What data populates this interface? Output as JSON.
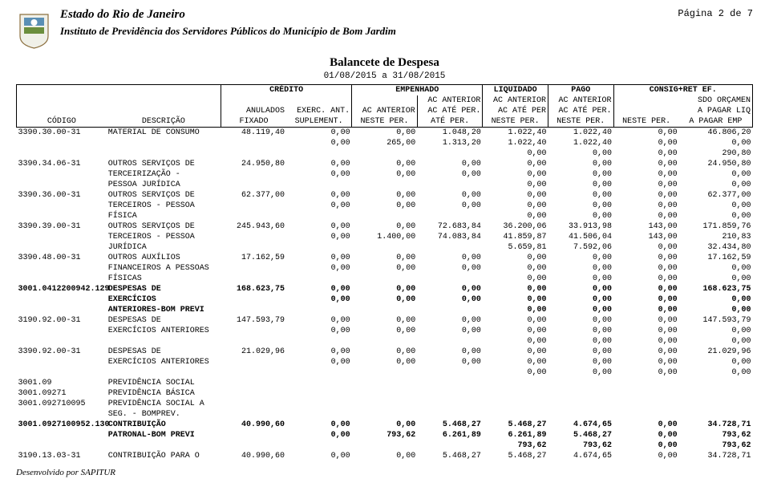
{
  "header": {
    "state": "Estado do Rio de Janeiro",
    "institution": "Instituto de Previdência dos Servidores Públicos do Município de Bom Jardim",
    "page": "Página 2 de 7"
  },
  "title": {
    "main": "Balancete de Despesa",
    "period": "01/08/2015 a 31/08/2015"
  },
  "groupHeaders": {
    "blank": "",
    "credito": "CRÉDITO",
    "empenhado": "EMPENHADO",
    "liquidado": "LIQUIDADO",
    "pago": "PAGO",
    "consig": "CONSIG+RET EF."
  },
  "colHeaders": {
    "r1": [
      "",
      "",
      "",
      "",
      "",
      "AC ANTERIOR",
      "AC ANTERIOR",
      "AC ANTERIOR",
      "SDO ORÇAMEN"
    ],
    "r2": [
      "",
      "",
      "ANULADOS",
      "EXERC. ANT.",
      "AC ANTERIOR",
      "AC ATÉ PER.",
      "AC ATÉ PER",
      "AC ATÉ PER.",
      "A PAGAR LIQ"
    ],
    "r3": [
      "CÓDIGO",
      "DESCRIÇÃO",
      "FIXADO",
      "SUPLEMENT.",
      "NESTE PER.",
      "ATÉ PER.",
      "NESTE PER.",
      "NESTE PER.",
      "NESTE PER.",
      "A PAGAR EMP"
    ]
  },
  "rows": [
    {
      "code": "3390.30.00-31",
      "desc": [
        "MATERIAL DE CONSUMO"
      ],
      "bold": false,
      "lines": [
        [
          "48.119,40",
          "0,00",
          "0,00",
          "1.048,20",
          "1.022,40",
          "1.022,40",
          "0,00",
          "46.806,20"
        ],
        [
          "",
          "0,00",
          "265,00",
          "1.313,20",
          "1.022,40",
          "1.022,40",
          "0,00",
          "0,00"
        ],
        [
          "",
          "",
          "",
          "",
          "0,00",
          "0,00",
          "0,00",
          "290,80"
        ]
      ]
    },
    {
      "code": "3390.34.06-31",
      "desc": [
        "OUTROS SERVIÇOS DE",
        "TERCEIRIZAÇÃO -",
        "PESSOA JURÍDICA"
      ],
      "bold": false,
      "lines": [
        [
          "24.950,80",
          "0,00",
          "0,00",
          "0,00",
          "0,00",
          "0,00",
          "0,00",
          "24.950,80"
        ],
        [
          "",
          "0,00",
          "0,00",
          "0,00",
          "0,00",
          "0,00",
          "0,00",
          "0,00"
        ],
        [
          "",
          "",
          "",
          "",
          "0,00",
          "0,00",
          "0,00",
          "0,00"
        ]
      ]
    },
    {
      "code": "3390.36.00-31",
      "desc": [
        "OUTROS SERVIÇOS DE",
        "TERCEIROS - PESSOA",
        "FÍSICA"
      ],
      "bold": false,
      "lines": [
        [
          "62.377,00",
          "0,00",
          "0,00",
          "0,00",
          "0,00",
          "0,00",
          "0,00",
          "62.377,00"
        ],
        [
          "",
          "0,00",
          "0,00",
          "0,00",
          "0,00",
          "0,00",
          "0,00",
          "0,00"
        ],
        [
          "",
          "",
          "",
          "",
          "0,00",
          "0,00",
          "0,00",
          "0,00"
        ]
      ]
    },
    {
      "code": "3390.39.00-31",
      "desc": [
        "OUTROS SERVIÇOS DE",
        "TERCEIROS - PESSOA",
        "JURÍDICA"
      ],
      "bold": false,
      "lines": [
        [
          "245.943,60",
          "0,00",
          "0,00",
          "72.683,84",
          "36.200,06",
          "33.913,98",
          "143,00",
          "171.859,76"
        ],
        [
          "",
          "0,00",
          "1.400,00",
          "74.083,84",
          "41.859,87",
          "41.506,04",
          "143,00",
          "210,83"
        ],
        [
          "",
          "",
          "",
          "",
          "5.659,81",
          "7.592,06",
          "0,00",
          "32.434,80"
        ]
      ]
    },
    {
      "code": "3390.48.00-31",
      "desc": [
        "OUTROS AUXÍLIOS",
        "FINANCEIROS A PESSOAS",
        "FÍSICAS"
      ],
      "bold": false,
      "lines": [
        [
          "17.162,59",
          "0,00",
          "0,00",
          "0,00",
          "0,00",
          "0,00",
          "0,00",
          "17.162,59"
        ],
        [
          "",
          "0,00",
          "0,00",
          "0,00",
          "0,00",
          "0,00",
          "0,00",
          "0,00"
        ],
        [
          "",
          "",
          "",
          "",
          "0,00",
          "0,00",
          "0,00",
          "0,00"
        ]
      ]
    },
    {
      "code": "3001.0412200942.129",
      "desc": [
        "DESPESAS DE",
        "EXERCÍCIOS",
        "ANTERIORES-BOM PREVI"
      ],
      "bold": true,
      "lines": [
        [
          "168.623,75",
          "0,00",
          "0,00",
          "0,00",
          "0,00",
          "0,00",
          "0,00",
          "168.623,75"
        ],
        [
          "",
          "0,00",
          "0,00",
          "0,00",
          "0,00",
          "0,00",
          "0,00",
          "0,00"
        ],
        [
          "",
          "",
          "",
          "",
          "0,00",
          "0,00",
          "0,00",
          "0,00"
        ]
      ]
    },
    {
      "code": "3190.92.00-31",
      "desc": [
        "DESPESAS DE",
        "EXERCÍCIOS ANTERIORES"
      ],
      "bold": false,
      "lines": [
        [
          "147.593,79",
          "0,00",
          "0,00",
          "0,00",
          "0,00",
          "0,00",
          "0,00",
          "147.593,79"
        ],
        [
          "",
          "0,00",
          "0,00",
          "0,00",
          "0,00",
          "0,00",
          "0,00",
          "0,00"
        ],
        [
          "",
          "",
          "",
          "",
          "0,00",
          "0,00",
          "0,00",
          "0,00"
        ]
      ]
    },
    {
      "code": "3390.92.00-31",
      "desc": [
        "DESPESAS DE",
        "EXERCÍCIOS ANTERIORES"
      ],
      "bold": false,
      "lines": [
        [
          "21.029,96",
          "0,00",
          "0,00",
          "0,00",
          "0,00",
          "0,00",
          "0,00",
          "21.029,96"
        ],
        [
          "",
          "0,00",
          "0,00",
          "0,00",
          "0,00",
          "0,00",
          "0,00",
          "0,00"
        ],
        [
          "",
          "",
          "",
          "",
          "0,00",
          "0,00",
          "0,00",
          "0,00"
        ]
      ]
    },
    {
      "code": "3001.09",
      "desc": [
        "PREVIDÊNCIA SOCIAL"
      ],
      "bold": false,
      "lines": []
    },
    {
      "code": "3001.09271",
      "desc": [
        "PREVIDÊNCIA BÁSICA"
      ],
      "bold": false,
      "lines": []
    },
    {
      "code": "3001.092710095",
      "desc": [
        "PREVIDÊNCIA SOCIAL A",
        "SEG. - BOMPREV."
      ],
      "bold": false,
      "lines": []
    },
    {
      "code": "3001.0927100952.130",
      "desc": [
        "CONTRIBUIÇÃO",
        "PATRONAL-BOM PREVI"
      ],
      "bold": true,
      "lines": [
        [
          "40.990,60",
          "0,00",
          "0,00",
          "5.468,27",
          "5.468,27",
          "4.674,65",
          "0,00",
          "34.728,71"
        ],
        [
          "",
          "0,00",
          "793,62",
          "6.261,89",
          "6.261,89",
          "5.468,27",
          "0,00",
          "793,62"
        ],
        [
          "",
          "",
          "",
          "",
          "793,62",
          "793,62",
          "0,00",
          "793,62"
        ]
      ]
    },
    {
      "code": "3190.13.03-31",
      "desc": [
        "CONTRIBUIÇÃO PARA O"
      ],
      "bold": false,
      "lines": [
        [
          "40.990,60",
          "0,00",
          "0,00",
          "5.468,27",
          "5.468,27",
          "4.674,65",
          "0,00",
          "34.728,71"
        ]
      ]
    }
  ],
  "footer": "Desenvolvido por SAPITUR",
  "colors": {
    "text": "#000000",
    "background": "#ffffff",
    "logo_green": "#6b8e3d",
    "logo_brown": "#8b6f3e",
    "logo_blue": "#5a8fb5"
  }
}
